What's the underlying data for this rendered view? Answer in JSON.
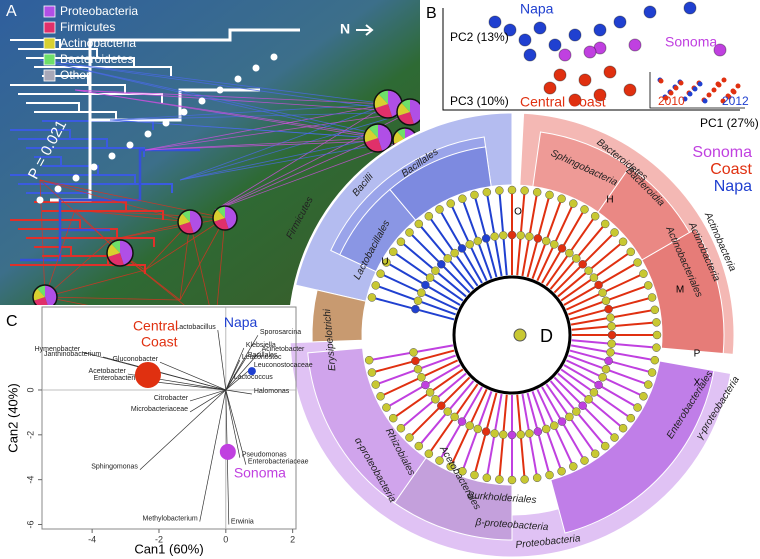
{
  "panel_a": {
    "letter": "A",
    "legend": [
      {
        "name": "Proteobacteria",
        "color": "#b04fe6"
      },
      {
        "name": "Firmicutes",
        "color": "#e0306a"
      },
      {
        "name": "Actinobacteria",
        "color": "#d8d030"
      },
      {
        "name": "Bacteroidetes",
        "color": "#6ee06a"
      },
      {
        "name": "Other",
        "color": "#a8a8b8"
      }
    ],
    "p_value": "P = 0.021",
    "north": "N"
  },
  "panel_b": {
    "letter": "B",
    "napa": "Napa",
    "sonoma": "Sonoma",
    "central_coast": "Central Coast",
    "pc1": "PC1 (27%)",
    "pc2": "PC2 (13%)",
    "pc3": "PC3 (10%)",
    "inset_years": [
      "2010",
      "2012"
    ]
  },
  "panel_c": {
    "letter": "C",
    "x_label": "Can1 (60%)",
    "y_label": "Can2 (40%)",
    "xlim": [
      -5.5,
      2.1
    ],
    "ylim": [
      -6.2,
      3.7
    ],
    "xticks": [
      -4,
      -2,
      0,
      2
    ],
    "yticks": [
      -6,
      -4,
      -2,
      0
    ],
    "arrows": [
      {
        "name": "Lactobacillus",
        "x": -0.24,
        "y": 2.67
      },
      {
        "name": "Sporosarcina",
        "x": 0.96,
        "y": 2.44
      },
      {
        "name": "Klebsiella",
        "x": 0.54,
        "y": 1.87
      },
      {
        "name": "Acinetobacter",
        "x": 1.01,
        "y": 1.69
      },
      {
        "name": "Bacillales",
        "x": 0.6,
        "y": 1.42
      },
      {
        "name": "Leuconostoc",
        "x": 0.42,
        "y": 1.33
      },
      {
        "name": "Leuconostocaceae",
        "x": 0.78,
        "y": 0.98
      },
      {
        "name": "Lactococcus",
        "x": 0.18,
        "y": 0.44
      },
      {
        "name": "Halomonas",
        "x": 0.78,
        "y": -0.18
      },
      {
        "name": "Hymenobacter",
        "x": -4.3,
        "y": 1.69
      },
      {
        "name": "Janthinobacterium",
        "x": -3.67,
        "y": 1.47
      },
      {
        "name": "Gluconobacter",
        "x": -1.97,
        "y": 1.24
      },
      {
        "name": "Acetobacter",
        "x": -2.93,
        "y": 0.71
      },
      {
        "name": "Enterobacterium",
        "x": -2.36,
        "y": 0.4
      },
      {
        "name": "Citrobacter",
        "x": -1.07,
        "y": -0.49
      },
      {
        "name": "Microbacteriaceae",
        "x": -1.07,
        "y": -0.98
      },
      {
        "name": "Sphingomonas",
        "x": -2.57,
        "y": -3.56
      },
      {
        "name": "Methylobacterium",
        "x": -0.78,
        "y": -5.87
      },
      {
        "name": "Erwinia",
        "x": 0.09,
        "y": -6.0
      },
      {
        "name": "Pseudomonas",
        "x": 0.42,
        "y": -3.02
      },
      {
        "name": "Enterobacteriaceae",
        "x": 0.6,
        "y": -3.33
      }
    ],
    "groups": [
      {
        "name": [
          "Central",
          "Coast"
        ],
        "color": "#e03010",
        "x": -2.33,
        "y": 0.67
      },
      {
        "name": [
          "Napa"
        ],
        "color": "#2040d0",
        "x": 0.78,
        "y": 0.84
      },
      {
        "name": [
          "Sonoma"
        ],
        "color": "#c040e0",
        "x": 0.06,
        "y": -2.76
      }
    ]
  },
  "panel_d": {
    "letter": "D",
    "legend": [
      {
        "name": "Sonoma",
        "color": "#c040e0"
      },
      {
        "name": "Coast",
        "color": "#e03010"
      },
      {
        "name": "Napa",
        "color": "#2040d0"
      }
    ],
    "clades": [
      "Firmicutes",
      "Bacilli",
      "Bacillales",
      "Lactobacillales",
      "Erysipelotrichi",
      "Bacteroidetes",
      "Sphingobacteria",
      "Bacteroidia",
      "Actinobacteria",
      "Actinobacteria",
      "Actinobacteriales",
      "γ-proteobacteria",
      "Enterobacteriales",
      "Proteobacteria",
      "β-proteobacteria",
      "Burkholderiales",
      "Acetobacterales",
      "Rhizobiales",
      "α-proteobacteria"
    ],
    "markers": [
      "U",
      "O",
      "H",
      "M",
      "P",
      "X"
    ]
  }
}
